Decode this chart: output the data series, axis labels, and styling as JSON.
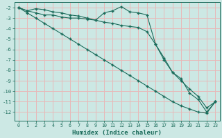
{
  "xlabel": "Humidex (Indice chaleur)",
  "background_color": "#cce8e4",
  "grid_color": "#e8b8b8",
  "line_color": "#1a6b5a",
  "xlim": [
    -0.5,
    23.5
  ],
  "ylim": [
    -12.8,
    -1.5
  ],
  "yticks": [
    -2,
    -3,
    -4,
    -5,
    -6,
    -7,
    -8,
    -9,
    -10,
    -11,
    -12
  ],
  "xticks": [
    0,
    1,
    2,
    3,
    4,
    5,
    6,
    7,
    8,
    9,
    10,
    11,
    12,
    13,
    14,
    15,
    16,
    17,
    18,
    19,
    20,
    21,
    22,
    23
  ],
  "line1_x": [
    0,
    1,
    2,
    3,
    4,
    5,
    6,
    7,
    8,
    9,
    10,
    11,
    12,
    13,
    14,
    15,
    16,
    17,
    18,
    19,
    20,
    21,
    22,
    23
  ],
  "line1_y": [
    -2.0,
    -2.3,
    -2.1,
    -2.2,
    -2.4,
    -2.5,
    -2.7,
    -2.8,
    -3.0,
    -3.2,
    -2.5,
    -2.3,
    -1.9,
    -2.4,
    -2.5,
    -2.7,
    -5.5,
    -6.8,
    -8.2,
    -8.8,
    -10.2,
    -10.8,
    -12.0,
    -11.0
  ],
  "line2_x": [
    0,
    1,
    2,
    3,
    4,
    5,
    6,
    7,
    8,
    9,
    10,
    11,
    12,
    13,
    14,
    15,
    16,
    17,
    18,
    19,
    20,
    21,
    22,
    23
  ],
  "line2_y": [
    -2.0,
    -2.3,
    -2.5,
    -2.7,
    -2.7,
    -2.9,
    -3.0,
    -3.0,
    -3.1,
    -3.2,
    -3.4,
    -3.5,
    -3.7,
    -3.8,
    -3.9,
    -4.3,
    -5.5,
    -7.0,
    -8.2,
    -9.0,
    -9.8,
    -10.5,
    -11.6,
    -11.0
  ],
  "line3_x": [
    0,
    1,
    2,
    3,
    4,
    5,
    6,
    7,
    8,
    9,
    10,
    11,
    12,
    13,
    14,
    15,
    16,
    17,
    18,
    19,
    20,
    21,
    22,
    23
  ],
  "line3_y": [
    -2.0,
    -2.5,
    -3.0,
    -3.5,
    -4.0,
    -4.5,
    -5.0,
    -5.5,
    -6.0,
    -6.5,
    -7.0,
    -7.5,
    -8.0,
    -8.5,
    -9.0,
    -9.5,
    -10.0,
    -10.5,
    -11.0,
    -11.4,
    -11.7,
    -12.0,
    -12.1,
    -11.0
  ]
}
